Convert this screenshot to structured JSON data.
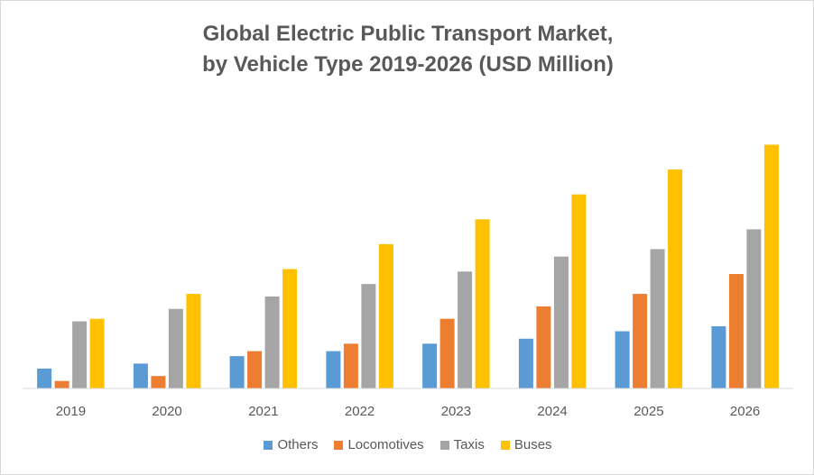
{
  "chart_data": {
    "type": "bar",
    "title_line1": "Global Electric Public Transport Market,",
    "title_line2": "by Vehicle Type 2019-2026 (USD Million)",
    "xlabel": "",
    "ylabel": "",
    "grid": false,
    "legend_position": "bottom",
    "ylim": [
      0,
      100
    ],
    "categories": [
      "2019",
      "2020",
      "2021",
      "2022",
      "2023",
      "2024",
      "2025",
      "2026"
    ],
    "series": [
      {
        "name": "Others",
        "color": "#5b9bd5",
        "values": [
          8,
          10,
          13,
          15,
          18,
          20,
          23,
          25
        ]
      },
      {
        "name": "Locomotives",
        "color": "#ed7d31",
        "values": [
          3,
          5,
          15,
          18,
          28,
          33,
          38,
          46
        ]
      },
      {
        "name": "Taxis",
        "color": "#a5a5a5",
        "values": [
          27,
          32,
          37,
          42,
          47,
          53,
          56,
          64
        ]
      },
      {
        "name": "Buses",
        "color": "#ffc000",
        "values": [
          28,
          38,
          48,
          58,
          68,
          78,
          88,
          98
        ]
      }
    ]
  }
}
